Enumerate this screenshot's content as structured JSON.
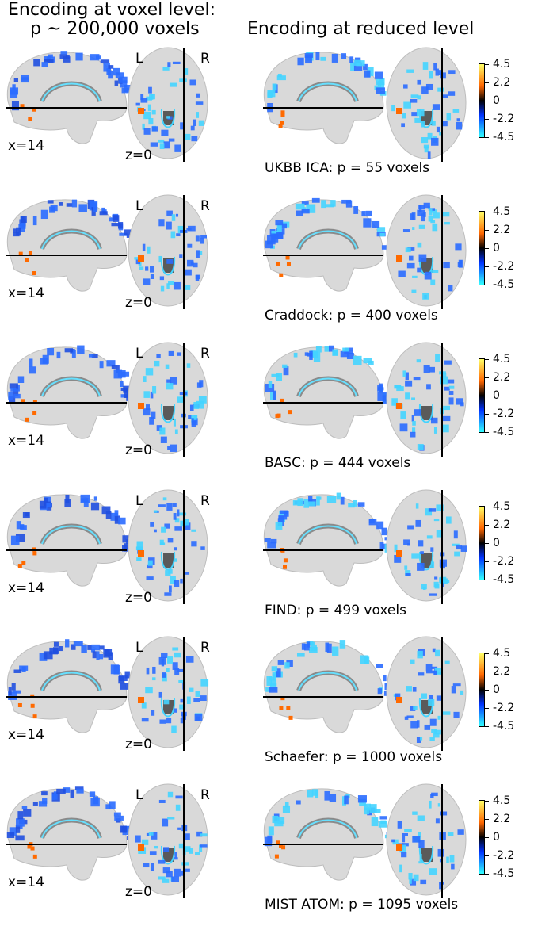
{
  "headers": {
    "left_line1": "Encoding at voxel level:",
    "left_line2": "p ~ 200,000 voxels",
    "right": "Encoding at reduced level"
  },
  "left_labels": {
    "sagittal_coord": "x=14",
    "axial_coord": "z=0",
    "left_marker": "L",
    "right_marker": "R"
  },
  "colorbar": {
    "ticks": [
      "4.5",
      "2.2",
      "0",
      "-2.2",
      "-4.5"
    ],
    "colors": {
      "max": "#ffff66",
      "high": "#ff6600",
      "zero": "#000000",
      "low": "#0033ff",
      "min": "#33ffff"
    }
  },
  "rows": [
    {
      "caption": "UKBB ICA: p = 55 voxels"
    },
    {
      "caption": "Craddock: p = 400 voxels"
    },
    {
      "caption": "BASC: p = 444 voxels"
    },
    {
      "caption": "FIND: p = 499 voxels"
    },
    {
      "caption": "Schaefer: p = 1000 voxels"
    },
    {
      "caption": "MIST ATOM: p = 1095 voxels"
    }
  ]
}
